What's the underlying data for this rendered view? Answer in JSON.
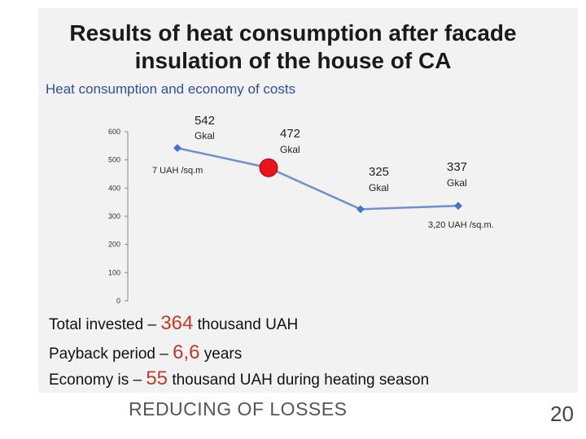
{
  "title_line1": "Results of heat consumption after facade",
  "title_line2": "insulation of the house of CA",
  "chart_data": {
    "type": "line",
    "title": "Heat consumption and economy of costs",
    "ylim": [
      0,
      600
    ],
    "yticks": [
      "0",
      "100",
      "200",
      "300",
      "400",
      "500",
      "600"
    ],
    "series": [
      {
        "name": "Heat consumption",
        "values": [
          542,
          472,
          325,
          337
        ]
      }
    ],
    "value_labels": [
      {
        "value": "542",
        "unit": "Gkal"
      },
      {
        "value": "472",
        "unit": "Gkal"
      },
      {
        "value": "325",
        "unit": "Gkal"
      },
      {
        "value": "337",
        "unit": "Gkal"
      }
    ],
    "annotations": {
      "first": "7 UAH /sq.m",
      "last": "3,20 UAH /sq.m."
    },
    "highlight_point_index": 1,
    "colors": {
      "line": "#6f8fcf",
      "marker": "#4a72c4",
      "highlight": "#e8141e"
    }
  },
  "summary": {
    "invested_prefix": "Total invested –",
    "invested_value": "364",
    "invested_suffix": "thousand UAH",
    "payback_prefix": "Payback period –",
    "payback_value": "6,6",
    "payback_suffix": "years",
    "economy_prefix": "Economy is –",
    "economy_value": "55",
    "economy_suffix": "thousand UAH during heating season"
  },
  "footer": "REDUCING OF LOSSES",
  "page_number": "20"
}
